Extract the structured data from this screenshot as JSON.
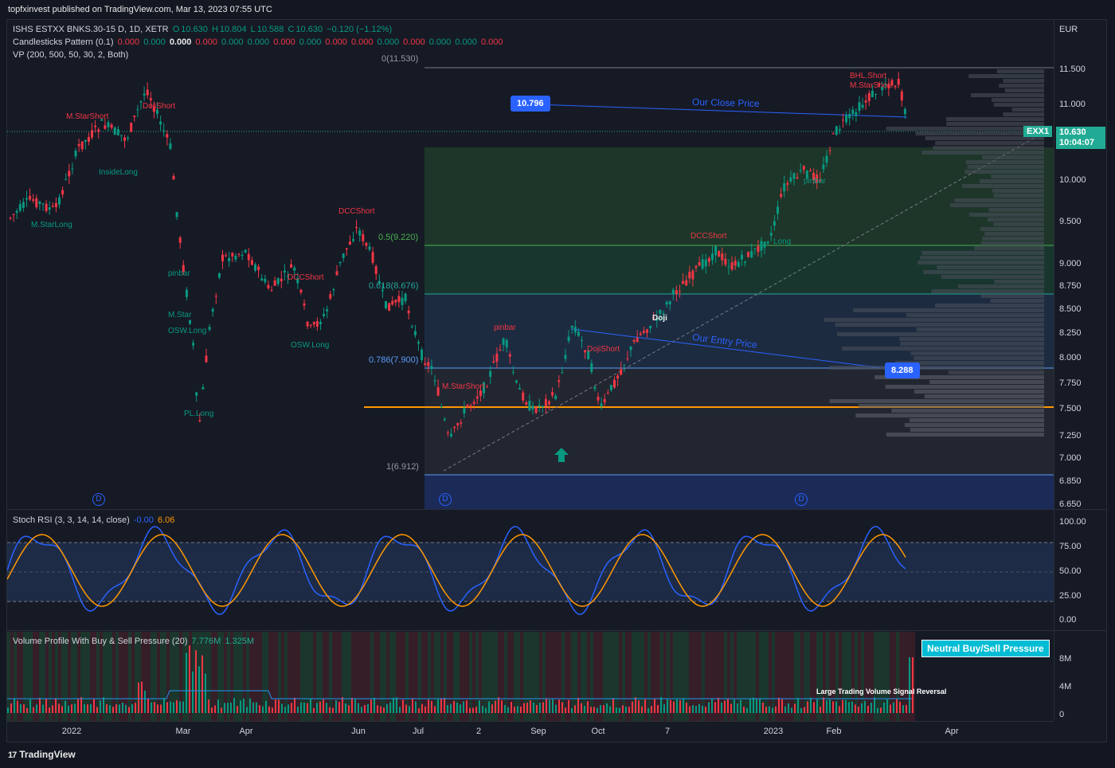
{
  "header": {
    "publisher": "topfxinvest published on TradingView.com, Mar 13, 2023 07:55 UTC"
  },
  "main_legend": {
    "symbol": "ISHS ESTXX BNKS.30-15 D, 1D, XETR",
    "o_label": "O",
    "o": "10.630",
    "h_label": "H",
    "h": "10.804",
    "l_label": "L",
    "l": "10.588",
    "c_label": "C",
    "c": "10.630",
    "change": "−0.120 (−1.12%)",
    "pattern_title": "Candlesticks Pattern (0.1)",
    "pattern_values": [
      "0.000",
      "0.000",
      "0.000",
      "0.000",
      "0.000",
      "0.000",
      "0.000",
      "0.000",
      "0.000",
      "0.000",
      "0.000",
      "0.000",
      "0.000",
      "0.000",
      "0.000"
    ],
    "vp_title": "VP (200, 500, 50, 30, 2, Both)"
  },
  "currency": "EUR",
  "price_axis": [
    "11.500",
    "11.000",
    "10.000",
    "9.500",
    "9.000",
    "8.750",
    "8.500",
    "8.250",
    "8.000",
    "7.750",
    "7.500",
    "7.250",
    "7.000",
    "6.850",
    "6.650"
  ],
  "current_price": {
    "symbol": "EXX1",
    "price": "10.630",
    "countdown": "10:04:07"
  },
  "fib_levels": [
    {
      "label": "0(11.530)"
    },
    {
      "label": "0.5(9.220)"
    },
    {
      "label": "0.618(8.676)"
    },
    {
      "label": "0.786(7.900)"
    },
    {
      "label": "1(6.912)"
    }
  ],
  "callouts": {
    "close_value": "10.796",
    "entry_value": "8.288"
  },
  "annotations": {
    "close_price": "Our Close Price",
    "entry_price": "Our Entry Price"
  },
  "pattern_labels": [
    "M.StarShort",
    "DojiShort",
    "InsideLong",
    "M.StarLong",
    "DCCShort",
    "pinbar",
    "DCCShort",
    "M.Star",
    "OSW.Long",
    "PL.Long",
    "OSW.Long",
    "pinbar",
    "M.StarShort",
    "DojiShort",
    "Doji",
    "BHL.Short",
    "M.StarShort",
    "DCCShort",
    "Long",
    "pinbar"
  ],
  "stoch": {
    "title": "Stoch RSI (3, 3, 14, 14, close)",
    "k": "-0.00",
    "d": "6.06",
    "axis": [
      "100.00",
      "75.00",
      "50.00",
      "25.00",
      "0.00"
    ]
  },
  "volume": {
    "title": "Volume Profile With Buy & Sell Pressure (20)",
    "v1": "7.776M",
    "v2": "1.325M",
    "axis": [
      "8M",
      "4M",
      "0"
    ],
    "pressure_badge": "Neutral Buy/Sell Pressure",
    "signal_text": "Large Trading Volume Signal Reversal"
  },
  "time_axis": [
    "2022",
    "Mar",
    "Apr",
    "Jun",
    "Jul",
    "2",
    "Sep",
    "Oct",
    "7",
    "2023",
    "Feb",
    "Apr"
  ],
  "footer": {
    "brand": "TradingView",
    "logo_glyph": "17"
  },
  "colors": {
    "bull": "#089981",
    "bear": "#f23645",
    "accent": "#2962ff",
    "orange": "#ff9800",
    "teal": "#22ab94"
  }
}
